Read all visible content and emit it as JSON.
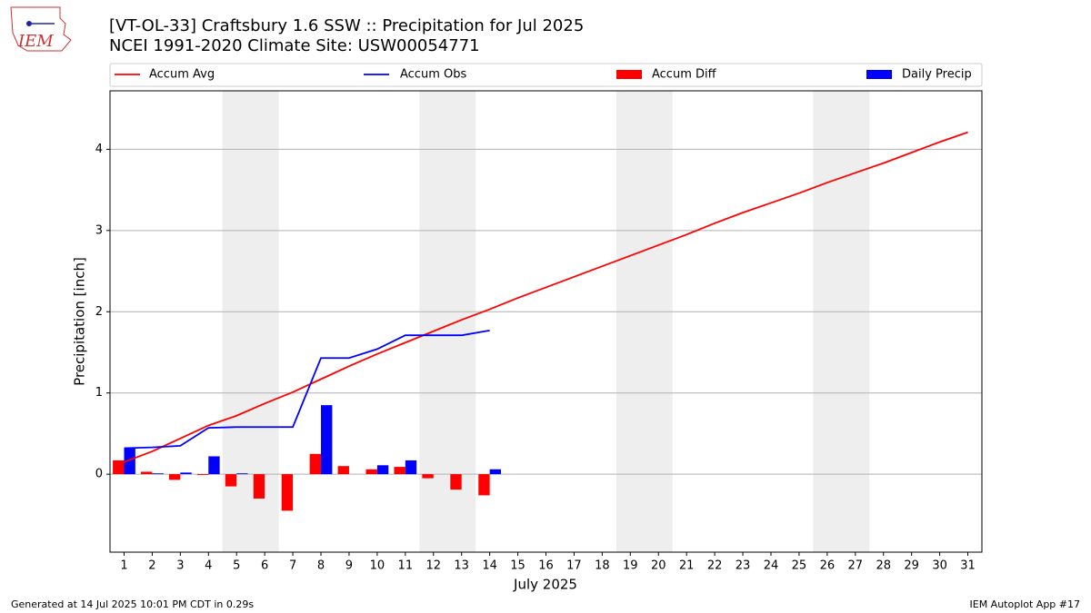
{
  "logo_text": "IEM",
  "footer_left": "Generated at 14 Jul 2025 10:01 PM CDT in 0.29s",
  "footer_right": "IEM Autoplot App #17",
  "chart_data": {
    "type": "combo",
    "title": "[VT-OL-33] Craftsbury 1.6 SSW :: Precipitation for Jul 2025",
    "subtitle": "NCEI 1991-2020 Climate Site: USW00054771",
    "xlabel": "July 2025",
    "ylabel": "Precipitation [inch]",
    "x": [
      1,
      2,
      3,
      4,
      5,
      6,
      7,
      8,
      9,
      10,
      11,
      12,
      13,
      14,
      15,
      16,
      17,
      18,
      19,
      20,
      21,
      22,
      23,
      24,
      25,
      26,
      27,
      28,
      29,
      30,
      31
    ],
    "xlim": [
      0.5,
      31.5
    ],
    "xticks": [
      1,
      2,
      3,
      4,
      5,
      6,
      7,
      8,
      9,
      10,
      11,
      12,
      13,
      14,
      15,
      16,
      17,
      18,
      19,
      20,
      21,
      22,
      23,
      24,
      25,
      26,
      27,
      28,
      29,
      30,
      31
    ],
    "ylim": [
      -0.96,
      4.72
    ],
    "yticks": [
      0,
      1,
      2,
      3,
      4
    ],
    "grid": true,
    "legend": "top",
    "highlight_spans": [
      [
        4.5,
        6.5
      ],
      [
        11.5,
        13.5
      ],
      [
        18.5,
        20.5
      ],
      [
        25.5,
        27.5
      ]
    ],
    "highlight_color": "#eeeeee",
    "series": [
      {
        "name": "Accum Avg",
        "type": "line",
        "color": "#ff0000",
        "values": [
          0.15,
          0.28,
          0.44,
          0.6,
          0.72,
          0.87,
          1.01,
          1.17,
          1.33,
          1.48,
          1.62,
          1.76,
          1.9,
          2.03,
          2.17,
          2.3,
          2.43,
          2.56,
          2.69,
          2.82,
          2.95,
          3.09,
          3.22,
          3.34,
          3.46,
          3.59,
          3.71,
          3.83,
          3.96,
          4.09,
          4.21
        ]
      },
      {
        "name": "Accum Obs",
        "type": "line",
        "color": "#0000ff",
        "values": [
          0.32,
          0.33,
          0.35,
          0.57,
          0.58,
          0.58,
          0.58,
          1.43,
          1.43,
          1.54,
          1.71,
          1.71,
          1.71,
          1.77,
          null,
          null,
          null,
          null,
          null,
          null,
          null,
          null,
          null,
          null,
          null,
          null,
          null,
          null,
          null,
          null,
          null
        ]
      },
      {
        "name": "Accum Diff",
        "type": "bar",
        "side": "left",
        "color": "#ff0000",
        "values": [
          0.17,
          0.03,
          -0.07,
          -0.01,
          -0.15,
          -0.3,
          -0.45,
          0.25,
          0.1,
          0.06,
          0.09,
          -0.05,
          -0.19,
          -0.26,
          null,
          null,
          null,
          null,
          null,
          null,
          null,
          null,
          null,
          null,
          null,
          null,
          null,
          null,
          null,
          null,
          null
        ]
      },
      {
        "name": "Daily Precip",
        "type": "bar",
        "side": "right",
        "color": "#0000ff",
        "values": [
          0.32,
          0.01,
          0.02,
          0.22,
          0.01,
          0,
          0,
          0.85,
          0,
          0.11,
          0.17,
          0,
          0,
          0.06,
          null,
          null,
          null,
          null,
          null,
          null,
          null,
          null,
          null,
          null,
          null,
          null,
          null,
          null,
          null,
          null,
          null
        ]
      }
    ]
  }
}
